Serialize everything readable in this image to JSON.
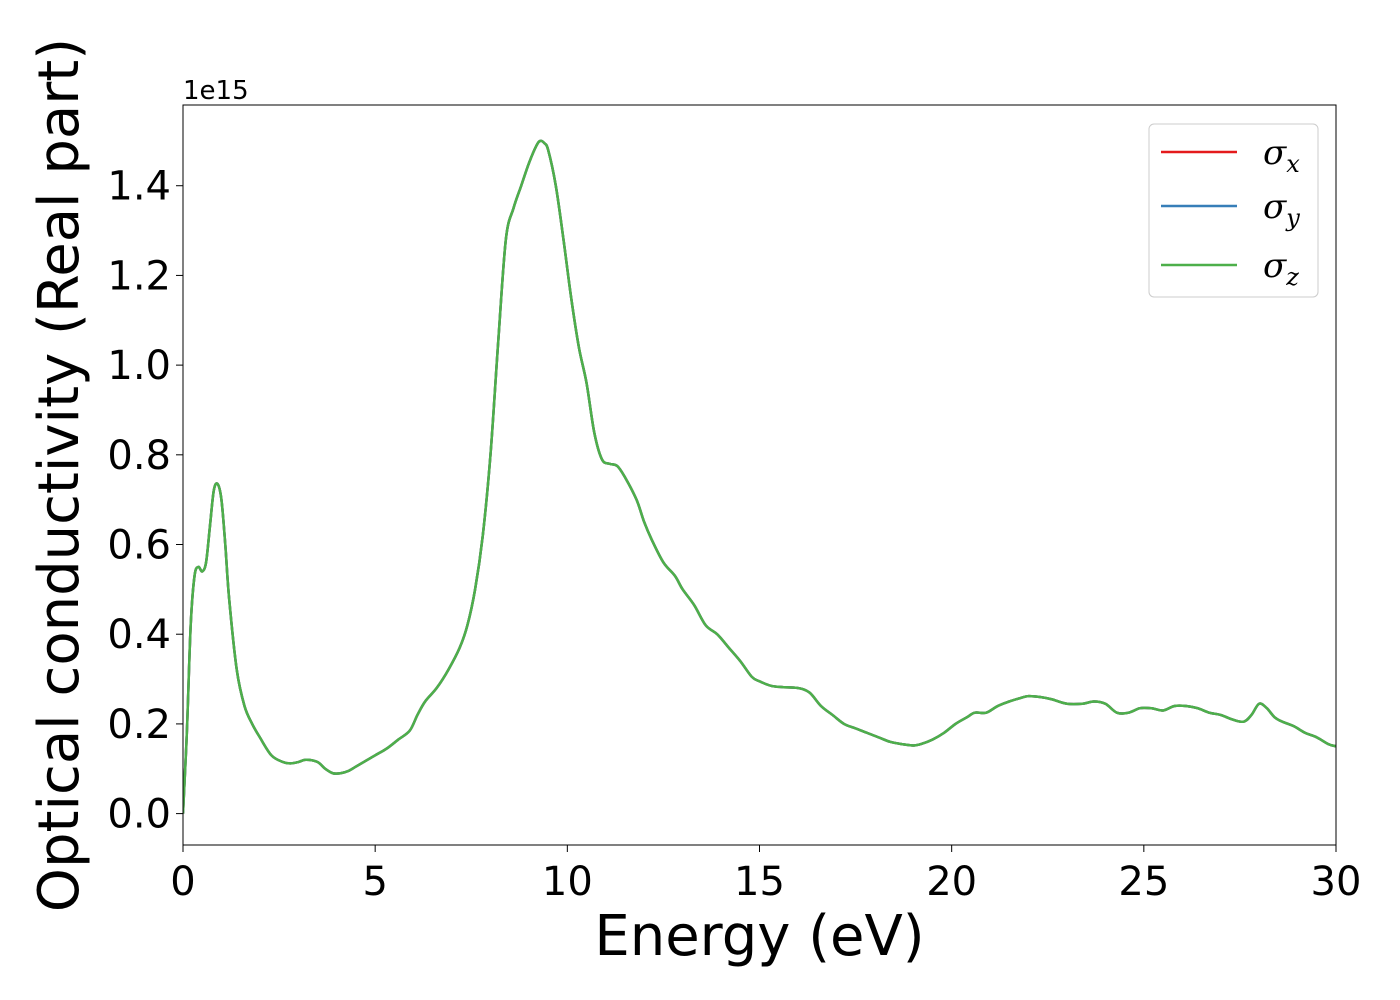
{
  "chart_data": {
    "type": "line",
    "xlabel": "Energy (eV)",
    "ylabel": "Optical conductivity (Real part)",
    "y_offset_label": "1e15",
    "xlim": [
      0,
      30
    ],
    "ylim": [
      -0.07,
      1.58
    ],
    "x_ticks": [
      0,
      5,
      10,
      15,
      20,
      25,
      30
    ],
    "x_tick_labels": [
      "0",
      "5",
      "10",
      "15",
      "20",
      "25",
      "30"
    ],
    "y_ticks": [
      0.0,
      0.2,
      0.4,
      0.6,
      0.8,
      1.0,
      1.2,
      1.4
    ],
    "y_tick_labels": [
      "0.0",
      "0.2",
      "0.4",
      "0.6",
      "0.8",
      "1.0",
      "1.2",
      "1.4"
    ],
    "grid": false,
    "legend_position": "top-right",
    "series": [
      {
        "name": "σ",
        "subscript": "x",
        "color": "#e41a1c"
      },
      {
        "name": "σ",
        "subscript": "y",
        "color": "#377eb8"
      },
      {
        "name": "σ",
        "subscript": "z",
        "color": "#4daf4a"
      }
    ],
    "x": [
      0,
      0.1,
      0.2,
      0.3,
      0.4,
      0.5,
      0.6,
      0.7,
      0.8,
      0.9,
      1.0,
      1.1,
      1.2,
      1.4,
      1.6,
      1.8,
      2.0,
      2.3,
      2.6,
      2.8,
      3.0,
      3.2,
      3.5,
      3.7,
      3.9,
      4.1,
      4.3,
      4.5,
      4.8,
      5.0,
      5.3,
      5.6,
      5.9,
      6.1,
      6.3,
      6.6,
      6.9,
      7.2,
      7.4,
      7.6,
      7.8,
      8.0,
      8.2,
      8.4,
      8.6,
      8.8,
      9.0,
      9.2,
      9.3,
      9.4,
      9.5,
      9.7,
      9.9,
      10.1,
      10.3,
      10.5,
      10.7,
      10.9,
      11.1,
      11.3,
      11.5,
      11.8,
      12.0,
      12.2,
      12.5,
      12.8,
      13.0,
      13.3,
      13.6,
      13.9,
      14.2,
      14.5,
      14.8,
      15.0,
      15.3,
      15.6,
      16.0,
      16.3,
      16.6,
      16.9,
      17.2,
      17.5,
      17.8,
      18.1,
      18.4,
      18.7,
      19.0,
      19.2,
      19.5,
      19.8,
      20.1,
      20.4,
      20.6,
      20.9,
      21.2,
      21.5,
      21.8,
      22.0,
      22.3,
      22.6,
      23.0,
      23.4,
      23.7,
      24.0,
      24.3,
      24.6,
      24.9,
      25.2,
      25.5,
      25.8,
      26.1,
      26.4,
      26.7,
      27.0,
      27.3,
      27.6,
      27.8,
      28.0,
      28.2,
      28.4,
      28.6,
      28.9,
      29.2,
      29.5,
      29.8,
      30.0
    ],
    "y": [
      0.0,
      0.18,
      0.42,
      0.53,
      0.55,
      0.54,
      0.56,
      0.64,
      0.72,
      0.735,
      0.7,
      0.6,
      0.48,
      0.32,
      0.24,
      0.2,
      0.17,
      0.13,
      0.115,
      0.112,
      0.115,
      0.12,
      0.115,
      0.1,
      0.09,
      0.09,
      0.095,
      0.105,
      0.12,
      0.13,
      0.145,
      0.165,
      0.185,
      0.22,
      0.25,
      0.28,
      0.32,
      0.37,
      0.42,
      0.5,
      0.62,
      0.8,
      1.05,
      1.28,
      1.35,
      1.4,
      1.45,
      1.49,
      1.5,
      1.495,
      1.48,
      1.4,
      1.28,
      1.15,
      1.04,
      0.96,
      0.85,
      0.79,
      0.78,
      0.775,
      0.75,
      0.7,
      0.65,
      0.61,
      0.56,
      0.53,
      0.5,
      0.465,
      0.42,
      0.4,
      0.37,
      0.34,
      0.305,
      0.295,
      0.285,
      0.282,
      0.28,
      0.27,
      0.24,
      0.22,
      0.2,
      0.19,
      0.18,
      0.17,
      0.16,
      0.155,
      0.152,
      0.155,
      0.165,
      0.18,
      0.2,
      0.215,
      0.225,
      0.225,
      0.24,
      0.25,
      0.258,
      0.262,
      0.26,
      0.255,
      0.245,
      0.245,
      0.25,
      0.245,
      0.225,
      0.225,
      0.235,
      0.235,
      0.23,
      0.24,
      0.24,
      0.235,
      0.225,
      0.22,
      0.21,
      0.205,
      0.22,
      0.245,
      0.235,
      0.215,
      0.205,
      0.195,
      0.18,
      0.17,
      0.155,
      0.15
    ]
  }
}
